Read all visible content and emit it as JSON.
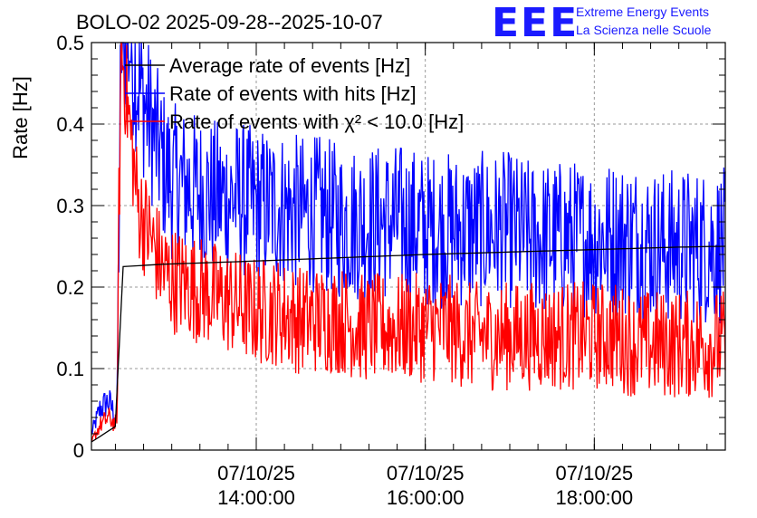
{
  "chart_data": {
    "type": "line",
    "title": "BOLO-02 2025-09-28--2025-10-07",
    "ylabel": "Rate [Hz]",
    "xlabel": "",
    "ylim": [
      0,
      0.5
    ],
    "yticks": [
      0,
      0.1,
      0.2,
      0.3,
      0.4,
      0.5
    ],
    "ytick_labels": [
      "0",
      "0.1",
      "0.2",
      "0.3",
      "0.4",
      "0.5"
    ],
    "xlim_hours": [
      12.05,
      19.55
    ],
    "xticks": [
      {
        "hour": 14.0,
        "date": "07/10/25",
        "time": "14:00:00"
      },
      {
        "hour": 16.0,
        "date": "07/10/25",
        "time": "16:00:00"
      },
      {
        "hour": 18.0,
        "date": "07/10/25",
        "time": "18:00:00"
      }
    ],
    "grid": true,
    "legend_position": "top-left",
    "series": [
      {
        "name": "Average rate of events [Hz]",
        "color": "#000000",
        "x": [
          12.05,
          12.35,
          12.4,
          12.9,
          14.0,
          15.0,
          16.0,
          17.0,
          18.0,
          19.0,
          19.5
        ],
        "y": [
          0.01,
          0.03,
          0.225,
          0.228,
          0.232,
          0.236,
          0.24,
          0.243,
          0.246,
          0.249,
          0.25
        ]
      },
      {
        "name": "Rate of events with hits [Hz]",
        "color": "#0000ff",
        "x": [
          12.05,
          12.15,
          12.25,
          12.35,
          12.4,
          12.5,
          12.6,
          12.75,
          12.9,
          13.0,
          13.25,
          13.5,
          13.75,
          14.0,
          14.25,
          14.5,
          14.75,
          15.0,
          15.25,
          15.5,
          15.75,
          16.0,
          16.25,
          16.5,
          16.75,
          17.0,
          17.25,
          17.5,
          17.75,
          18.0,
          18.25,
          18.5,
          18.75,
          19.0,
          19.25,
          19.5
        ],
        "y": [
          0.02,
          0.05,
          0.06,
          0.04,
          0.5,
          0.5,
          0.45,
          0.4,
          0.35,
          0.33,
          0.32,
          0.31,
          0.31,
          0.3,
          0.3,
          0.29,
          0.29,
          0.28,
          0.28,
          0.28,
          0.28,
          0.27,
          0.27,
          0.27,
          0.27,
          0.27,
          0.26,
          0.26,
          0.26,
          0.26,
          0.26,
          0.26,
          0.25,
          0.25,
          0.25,
          0.25
        ]
      },
      {
        "name": "Rate of events with χ² < 10.0 [Hz]",
        "color": "#ff0000",
        "x": [
          12.05,
          12.15,
          12.25,
          12.35,
          12.4,
          12.5,
          12.6,
          12.75,
          12.9,
          13.0,
          13.25,
          13.5,
          13.75,
          14.0,
          14.25,
          14.5,
          14.75,
          15.0,
          15.25,
          15.5,
          15.75,
          16.0,
          16.25,
          16.5,
          16.75,
          17.0,
          17.25,
          17.5,
          17.75,
          18.0,
          18.25,
          18.5,
          18.75,
          19.0,
          19.25,
          19.5
        ],
        "y": [
          0.01,
          0.03,
          0.04,
          0.03,
          0.5,
          0.4,
          0.3,
          0.26,
          0.22,
          0.21,
          0.2,
          0.19,
          0.18,
          0.17,
          0.17,
          0.16,
          0.16,
          0.16,
          0.15,
          0.15,
          0.15,
          0.15,
          0.15,
          0.14,
          0.14,
          0.14,
          0.14,
          0.14,
          0.14,
          0.14,
          0.14,
          0.13,
          0.13,
          0.13,
          0.13,
          0.13
        ]
      }
    ]
  },
  "logo": {
    "letters": "EEE",
    "line1": "Extreme Energy Events",
    "line2": "La Scienza nelle Scuole",
    "color": "#1a1aff"
  }
}
